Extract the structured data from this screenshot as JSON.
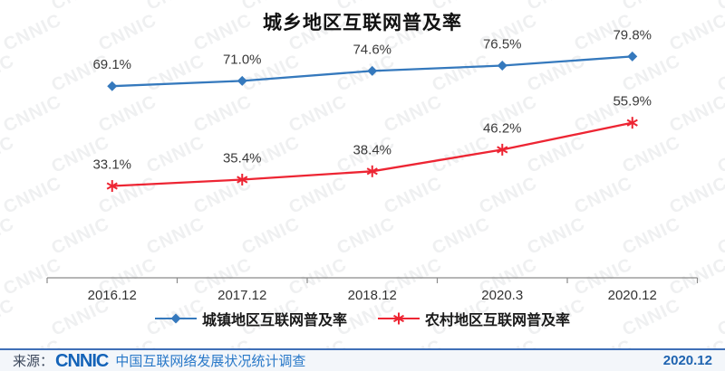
{
  "chart_data": {
    "type": "line",
    "title": "城乡地区互联网普及率",
    "categories": [
      "2016.12",
      "2017.12",
      "2018.12",
      "2020.3",
      "2020.12"
    ],
    "series": [
      {
        "name": "城镇地区互联网普及率",
        "values": [
          69.1,
          71.0,
          74.6,
          76.5,
          79.8
        ],
        "color": "#3579bd",
        "marker": "diamond"
      },
      {
        "name": "农村地区互联网普及率",
        "values": [
          33.1,
          35.4,
          38.4,
          46.2,
          55.9
        ],
        "color": "#ed2533",
        "marker": "asterisk"
      }
    ],
    "value_suffix": "%",
    "data_labels": [
      "69.1%",
      "71.0%",
      "74.6%",
      "76.5%",
      "79.8%",
      "33.1%",
      "35.4%",
      "38.4%",
      "46.2%",
      "55.9%"
    ],
    "ylim": [
      0,
      100
    ],
    "grid": false,
    "legend_position": "bottom",
    "axis_color": "#8a8a8a",
    "label_color": "#3a3a3a"
  },
  "watermark": {
    "text": "CNNIC"
  },
  "footer": {
    "source_label": "来源：",
    "logo_text": "CNNIC",
    "org_text": "中国互联网络发展状况统计调查",
    "date": "2020.12"
  }
}
